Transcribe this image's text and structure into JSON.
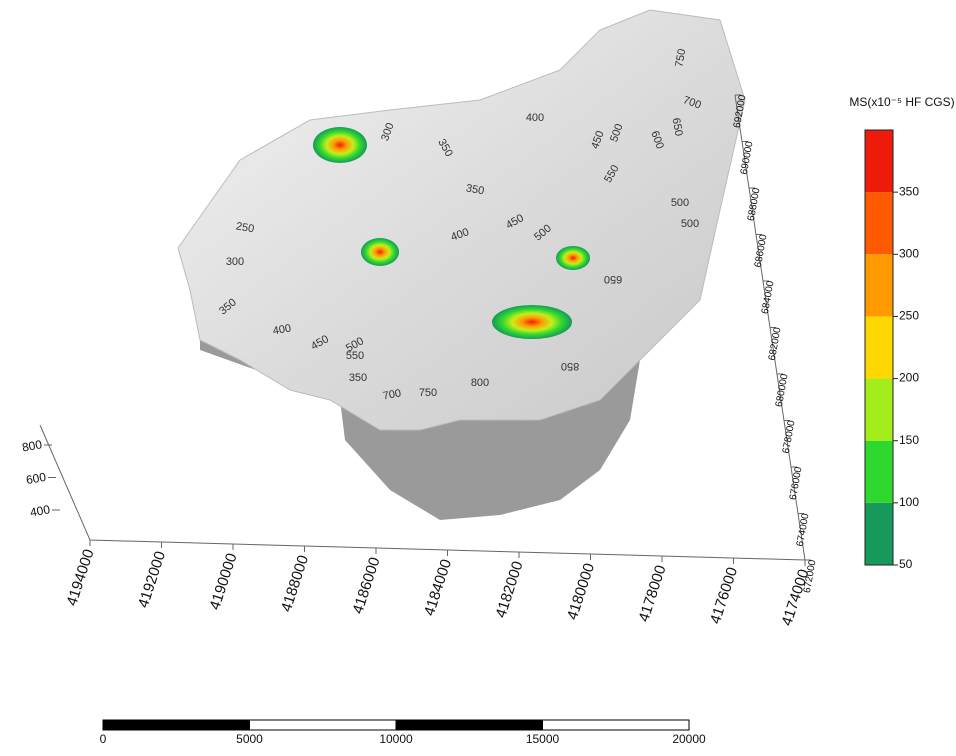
{
  "colorbar": {
    "title": "MS(x10⁻⁵ HF CGS)",
    "ticks": [
      50,
      100,
      150,
      200,
      250,
      300,
      350
    ],
    "limits": [
      50,
      400
    ],
    "colors": [
      "#16995a",
      "#2fd82f",
      "#a4ec1c",
      "#ffd700",
      "#ff9a00",
      "#ff5a00",
      "#ee1a0a"
    ]
  },
  "northing_axis": {
    "ticks": [
      4194000,
      4192000,
      4190000,
      4188000,
      4186000,
      4184000,
      4182000,
      4180000,
      4178000,
      4176000,
      4174000
    ]
  },
  "easting_axis": {
    "ticks": [
      672000,
      674000,
      676000,
      678000,
      680000,
      682000,
      684000,
      686000,
      688000,
      690000,
      692000
    ]
  },
  "elevation_axis": {
    "ticks": [
      400,
      600,
      800
    ]
  },
  "scale_bar": {
    "ticks": [
      0,
      5000,
      10000,
      15000,
      20000
    ]
  },
  "contour_labels": [
    "300",
    "350",
    "400",
    "450",
    "500",
    "600",
    "650",
    "700",
    "750",
    "350",
    "250",
    "400",
    "450",
    "500",
    "300",
    "350",
    "400",
    "450",
    "500",
    "550",
    "350",
    "700",
    "750",
    "800",
    "850",
    "650",
    "500",
    "500",
    "550"
  ]
}
